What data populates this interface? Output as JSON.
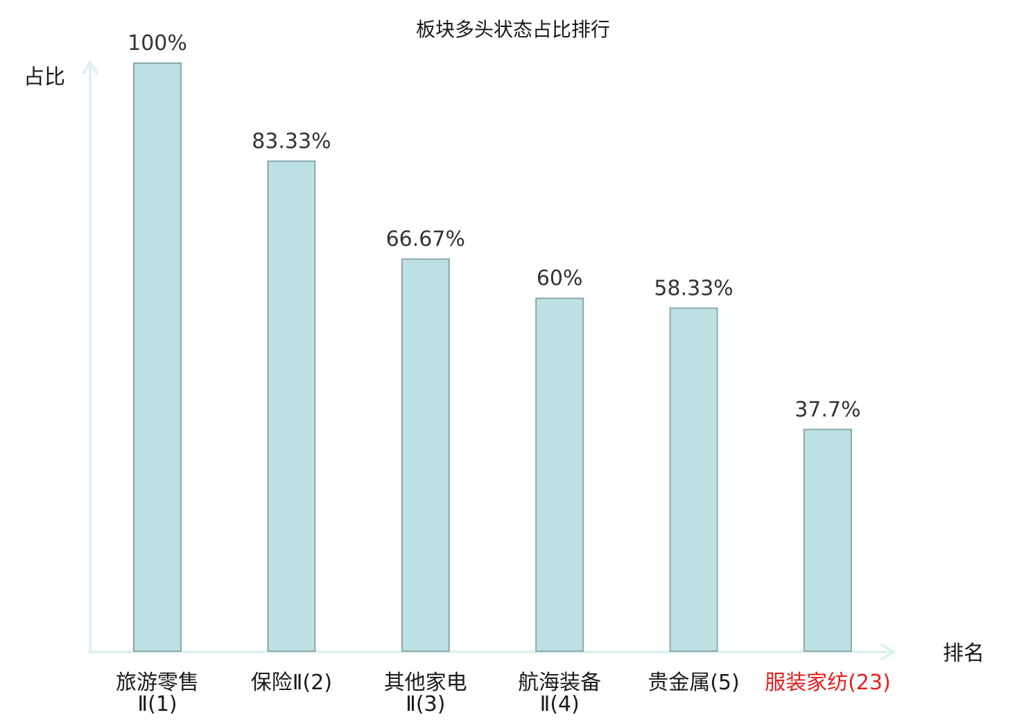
{
  "chart_data": {
    "type": "bar",
    "title": "板块多头状态占比排行",
    "ylabel": "占比",
    "xlabel": "排名",
    "ylim": [
      0,
      100
    ],
    "grid": false,
    "legend": "none",
    "categories": [
      {
        "name_line1": "旅游零售",
        "name_line2": "Ⅱ(1)",
        "highlight": false
      },
      {
        "name_line1": "保险Ⅱ(2)",
        "name_line2": "",
        "highlight": false
      },
      {
        "name_line1": "其他家电",
        "name_line2": "Ⅱ(3)",
        "highlight": false
      },
      {
        "name_line1": "航海装备",
        "name_line2": "Ⅱ(4)",
        "highlight": false
      },
      {
        "name_line1": "贵金属(5)",
        "name_line2": "",
        "highlight": false
      },
      {
        "name_line1": "服装家纺(23)",
        "name_line2": "",
        "highlight": true
      }
    ],
    "values": [
      100,
      83.33,
      66.67,
      60,
      58.33,
      37.7
    ],
    "value_labels": [
      "100%",
      "83.33%",
      "66.67%",
      "60%",
      "58.33%",
      "37.7%"
    ]
  },
  "colors": {
    "bar_fill": "#bde0e2",
    "bar_stroke": "#8aa8ab",
    "axis": "#dff1ee",
    "text": "#1a1a1a",
    "value_text": "#333333",
    "highlight": "#e02020"
  }
}
